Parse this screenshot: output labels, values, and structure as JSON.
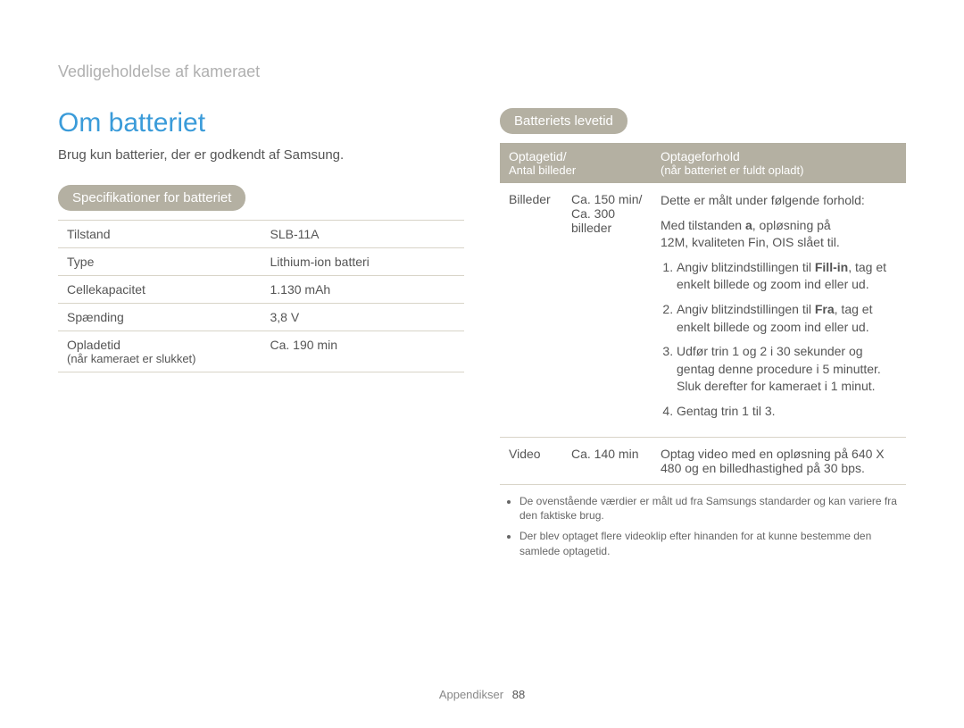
{
  "breadcrumb": "Vedligeholdelse af kameraet",
  "page_title": "Om batteriet",
  "intro": "Brug kun batterier, der er godkendt af Samsung.",
  "left": {
    "badge": "Specifikationer for batteriet",
    "rows": [
      {
        "label": "Tilstand",
        "sub": "",
        "value": "SLB-11A"
      },
      {
        "label": "Type",
        "sub": "",
        "value": "Lithium-ion batteri"
      },
      {
        "label": "Cellekapacitet",
        "sub": "",
        "value": "1.130 mAh"
      },
      {
        "label": "Spænding",
        "sub": "",
        "value": "3,8 V"
      },
      {
        "label": "Opladetid",
        "sub": "(når kameraet er slukket)",
        "value": "Ca. 190 min"
      }
    ]
  },
  "right": {
    "badge": "Batteriets levetid",
    "header": {
      "col1_line1": "Optagetid/",
      "col1_line2": "Antal billeder",
      "col2_line1": "Optageforhold",
      "col2_line2": "(når batteriet er fuldt opladt)"
    },
    "row1": {
      "label": "Billeder",
      "value_line1": "Ca. 150 min/",
      "value_line2": "Ca. 300",
      "value_line3": "billeder",
      "cond_intro_1": "Dette er målt under følgende forhold:",
      "cond_intro_2a": "Med tilstanden ",
      "cond_intro_2b": "a",
      "cond_intro_2c": ", opløsning på",
      "cond_intro_3": "12M, kvaliteten Fin, OIS slået til.",
      "step1a": "Angiv blitzindstillingen til ",
      "step1b": "Fill-in",
      "step1c": ", tag et enkelt billede og zoom ind eller ud.",
      "step2a": "Angiv blitzindstillingen til ",
      "step2b": "Fra",
      "step2c": ", tag et enkelt billede og zoom ind eller ud.",
      "step3": "Udfør trin 1 og 2 i 30 sekunder og gentag denne procedure i 5 minutter. Sluk derefter for kameraet i 1 minut.",
      "step4": "Gentag trin 1 til 3."
    },
    "row2": {
      "label": "Video",
      "value": "Ca. 140 min",
      "cond": "Optag video med en opløsning på 640 X 480 og en billedhastighed på 30 bps."
    },
    "notes": [
      "De ovenstående værdier er målt ud fra Samsungs standarder og kan variere fra den faktiske brug.",
      "Der blev optaget flere videoklip efter hinanden for at kunne bestemme den samlede optagetid."
    ]
  },
  "footer": {
    "label": "Appendikser",
    "page": "88"
  }
}
